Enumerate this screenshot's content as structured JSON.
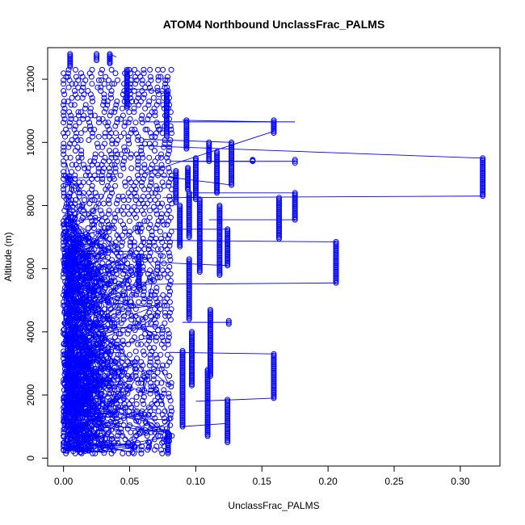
{
  "chart_data": {
    "type": "scatter",
    "title": "ATOM4 Northbound UnclassFrac_PALMS",
    "xlabel": "UnclassFrac_PALMS",
    "ylabel": "Altitude (m)",
    "xlim": [
      -0.012,
      0.33
    ],
    "ylim": [
      -250,
      13000
    ],
    "xticks": [
      0.0,
      0.05,
      0.1,
      0.15,
      0.2,
      0.25,
      0.3
    ],
    "xtick_labels": [
      "0.00",
      "0.05",
      "0.10",
      "0.15",
      "0.20",
      "0.25",
      "0.30"
    ],
    "yticks": [
      0,
      2000,
      4000,
      6000,
      8000,
      10000,
      12000
    ],
    "ytick_labels": [
      "0",
      "2000",
      "4000",
      "6000",
      "8000",
      "10000",
      "12000"
    ],
    "marker": "open-circle",
    "color": "#0000ff",
    "connected": true,
    "grid": false,
    "legend": "none",
    "dense_region": {
      "x_range": [
        0.0,
        0.08
      ],
      "y_range": [
        150,
        12300
      ],
      "vertical_runs": [
        0.0,
        0.005,
        0.01,
        0.015,
        0.02,
        0.025,
        0.03,
        0.035,
        0.04,
        0.045,
        0.05,
        0.055,
        0.06,
        0.065,
        0.07,
        0.075,
        0.08
      ]
    },
    "outlier_columns": [
      {
        "x": 0.317,
        "y_min": 8300,
        "y_max": 9500
      },
      {
        "x": 0.206,
        "y_min": 5550,
        "y_max": 6850
      },
      {
        "x": 0.175,
        "y_min": 7550,
        "y_max": 8400
      },
      {
        "x": 0.175,
        "y_min": 9350,
        "y_max": 9450
      },
      {
        "x": 0.163,
        "y_min": 6950,
        "y_max": 8250
      },
      {
        "x": 0.159,
        "y_min": 1900,
        "y_max": 3300
      },
      {
        "x": 0.159,
        "y_min": 10300,
        "y_max": 10700
      },
      {
        "x": 0.143,
        "y_min": 9400,
        "y_max": 9450
      },
      {
        "x": 0.127,
        "y_min": 8650,
        "y_max": 10000
      },
      {
        "x": 0.125,
        "y_min": 4250,
        "y_max": 4350
      },
      {
        "x": 0.124,
        "y_min": 6100,
        "y_max": 7250
      },
      {
        "x": 0.124,
        "y_min": 500,
        "y_max": 1850
      },
      {
        "x": 0.118,
        "y_min": 5800,
        "y_max": 8000
      },
      {
        "x": 0.116,
        "y_min": 8400,
        "y_max": 9700
      },
      {
        "x": 0.111,
        "y_min": 2600,
        "y_max": 4700
      },
      {
        "x": 0.11,
        "y_min": 9400,
        "y_max": 10000
      },
      {
        "x": 0.109,
        "y_min": 700,
        "y_max": 2800
      },
      {
        "x": 0.103,
        "y_min": 5900,
        "y_max": 8200
      },
      {
        "x": 0.1,
        "y_min": 8200,
        "y_max": 9500
      },
      {
        "x": 0.097,
        "y_min": 2300,
        "y_max": 4000
      },
      {
        "x": 0.095,
        "y_min": 7000,
        "y_max": 8400
      },
      {
        "x": 0.095,
        "y_min": 4400,
        "y_max": 6300
      },
      {
        "x": 0.094,
        "y_min": 8500,
        "y_max": 9200
      },
      {
        "x": 0.093,
        "y_min": 9800,
        "y_max": 10700
      },
      {
        "x": 0.09,
        "y_min": 1000,
        "y_max": 3400
      },
      {
        "x": 0.088,
        "y_min": 6700,
        "y_max": 8000
      },
      {
        "x": 0.085,
        "y_min": 8100,
        "y_max": 9100
      },
      {
        "x": 0.078,
        "y_min": 10200,
        "y_max": 11600
      },
      {
        "x": 0.079,
        "y_min": 150,
        "y_max": 800
      },
      {
        "x": 0.057,
        "y_min": 5400,
        "y_max": 6400
      },
      {
        "x": 0.048,
        "y_min": 11100,
        "y_max": 12300
      },
      {
        "x": 0.035,
        "y_min": 12500,
        "y_max": 12800
      },
      {
        "x": 0.025,
        "y_min": 12600,
        "y_max": 12800
      },
      {
        "x": 0.005,
        "y_min": 12400,
        "y_max": 12800
      }
    ],
    "connecting_lines": [
      {
        "x1": 0.055,
        "y1": 9900,
        "x2": 0.317,
        "y2": 9500
      },
      {
        "x1": 0.075,
        "y1": 8250,
        "x2": 0.317,
        "y2": 8300
      },
      {
        "x1": 0.06,
        "y1": 6900,
        "x2": 0.206,
        "y2": 6850
      },
      {
        "x1": 0.05,
        "y1": 5500,
        "x2": 0.206,
        "y2": 5550
      },
      {
        "x1": 0.06,
        "y1": 10650,
        "x2": 0.175,
        "y2": 10650
      },
      {
        "x1": 0.09,
        "y1": 9400,
        "x2": 0.175,
        "y2": 9400
      },
      {
        "x1": 0.095,
        "y1": 8400,
        "x2": 0.175,
        "y2": 8400
      },
      {
        "x1": 0.11,
        "y1": 7550,
        "x2": 0.175,
        "y2": 7550
      },
      {
        "x1": 0.08,
        "y1": 3350,
        "x2": 0.159,
        "y2": 3300
      },
      {
        "x1": 0.1,
        "y1": 1800,
        "x2": 0.159,
        "y2": 1900
      },
      {
        "x1": 0.09,
        "y1": 10700,
        "x2": 0.159,
        "y2": 10650
      },
      {
        "x1": 0.06,
        "y1": 9000,
        "x2": 0.159,
        "y2": 10350
      },
      {
        "x1": 0.06,
        "y1": 10100,
        "x2": 0.127,
        "y2": 10000
      },
      {
        "x1": 0.07,
        "y1": 8950,
        "x2": 0.127,
        "y2": 8650
      },
      {
        "x1": 0.09,
        "y1": 4300,
        "x2": 0.125,
        "y2": 4300
      },
      {
        "x1": 0.08,
        "y1": 7250,
        "x2": 0.124,
        "y2": 7250
      },
      {
        "x1": 0.07,
        "y1": 6200,
        "x2": 0.124,
        "y2": 6100
      },
      {
        "x1": 0.09,
        "y1": 1000,
        "x2": 0.124,
        "y2": 1100
      },
      {
        "x1": 0.08,
        "y1": 9400,
        "x2": 0.143,
        "y2": 9400
      },
      {
        "x1": 0.05,
        "y1": 11700,
        "x2": 0.078,
        "y2": 11600
      },
      {
        "x1": 0.04,
        "y1": 12700,
        "x2": 0.035,
        "y2": 12800
      }
    ]
  }
}
